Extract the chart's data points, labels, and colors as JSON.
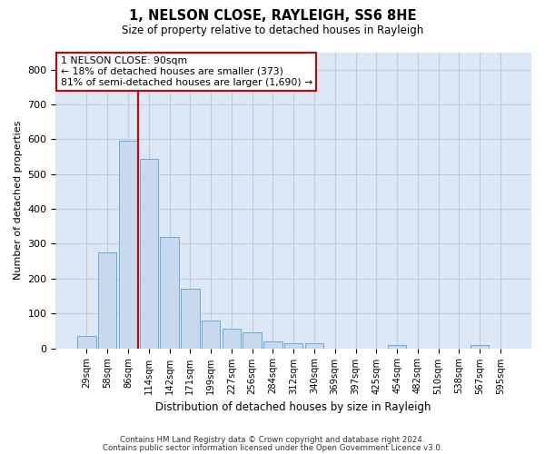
{
  "title1": "1, NELSON CLOSE, RAYLEIGH, SS6 8HE",
  "title2": "Size of property relative to detached houses in Rayleigh",
  "xlabel": "Distribution of detached houses by size in Rayleigh",
  "ylabel": "Number of detached properties",
  "footer1": "Contains HM Land Registry data © Crown copyright and database right 2024.",
  "footer2": "Contains public sector information licensed under the Open Government Licence v3.0.",
  "annotation_line1": "1 NELSON CLOSE: 90sqm",
  "annotation_line2": "← 18% of detached houses are smaller (373)",
  "annotation_line3": "81% of semi-detached houses are larger (1,690) →",
  "bar_color": "#c8d9ee",
  "bar_edge_color": "#6aaad4",
  "grid_color": "#b8cce0",
  "vline_color": "#cc0000",
  "annotation_box_edgecolor": "#cc0000",
  "background_color": "#dce8f5",
  "categories": [
    "29sqm",
    "58sqm",
    "86sqm",
    "114sqm",
    "142sqm",
    "171sqm",
    "199sqm",
    "227sqm",
    "256sqm",
    "284sqm",
    "312sqm",
    "340sqm",
    "369sqm",
    "397sqm",
    "425sqm",
    "454sqm",
    "482sqm",
    "510sqm",
    "538sqm",
    "567sqm",
    "595sqm"
  ],
  "values": [
    35,
    275,
    595,
    545,
    320,
    170,
    80,
    55,
    45,
    20,
    15,
    15,
    0,
    0,
    0,
    10,
    0,
    0,
    0,
    10,
    0
  ],
  "vline_x": 2.5,
  "ylim": [
    0,
    850
  ],
  "yticks": [
    0,
    100,
    200,
    300,
    400,
    500,
    600,
    700,
    800
  ]
}
